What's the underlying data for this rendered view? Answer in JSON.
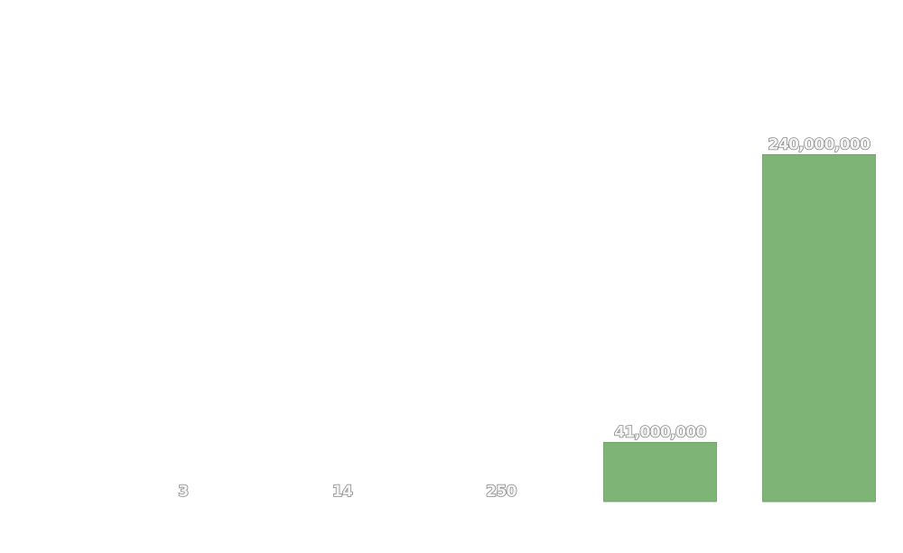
{
  "chart_data": {
    "type": "bar",
    "categories": [
      "",
      "",
      "",
      "",
      ""
    ],
    "values": [
      3,
      14,
      250,
      41000000,
      240000000
    ],
    "data_labels": [
      "3",
      "14",
      "250",
      "41,000,000",
      "240,000,000"
    ],
    "ylim": [
      0,
      320000000
    ],
    "yticks": [
      0,
      80000000,
      160000000,
      240000000,
      320000000
    ],
    "ytick_labels": [
      "",
      "",
      "",
      "",
      ""
    ],
    "title": "",
    "xlabel": "",
    "ylabel": "",
    "grid": false,
    "legend": "none",
    "bar_color": "#7eb475"
  }
}
